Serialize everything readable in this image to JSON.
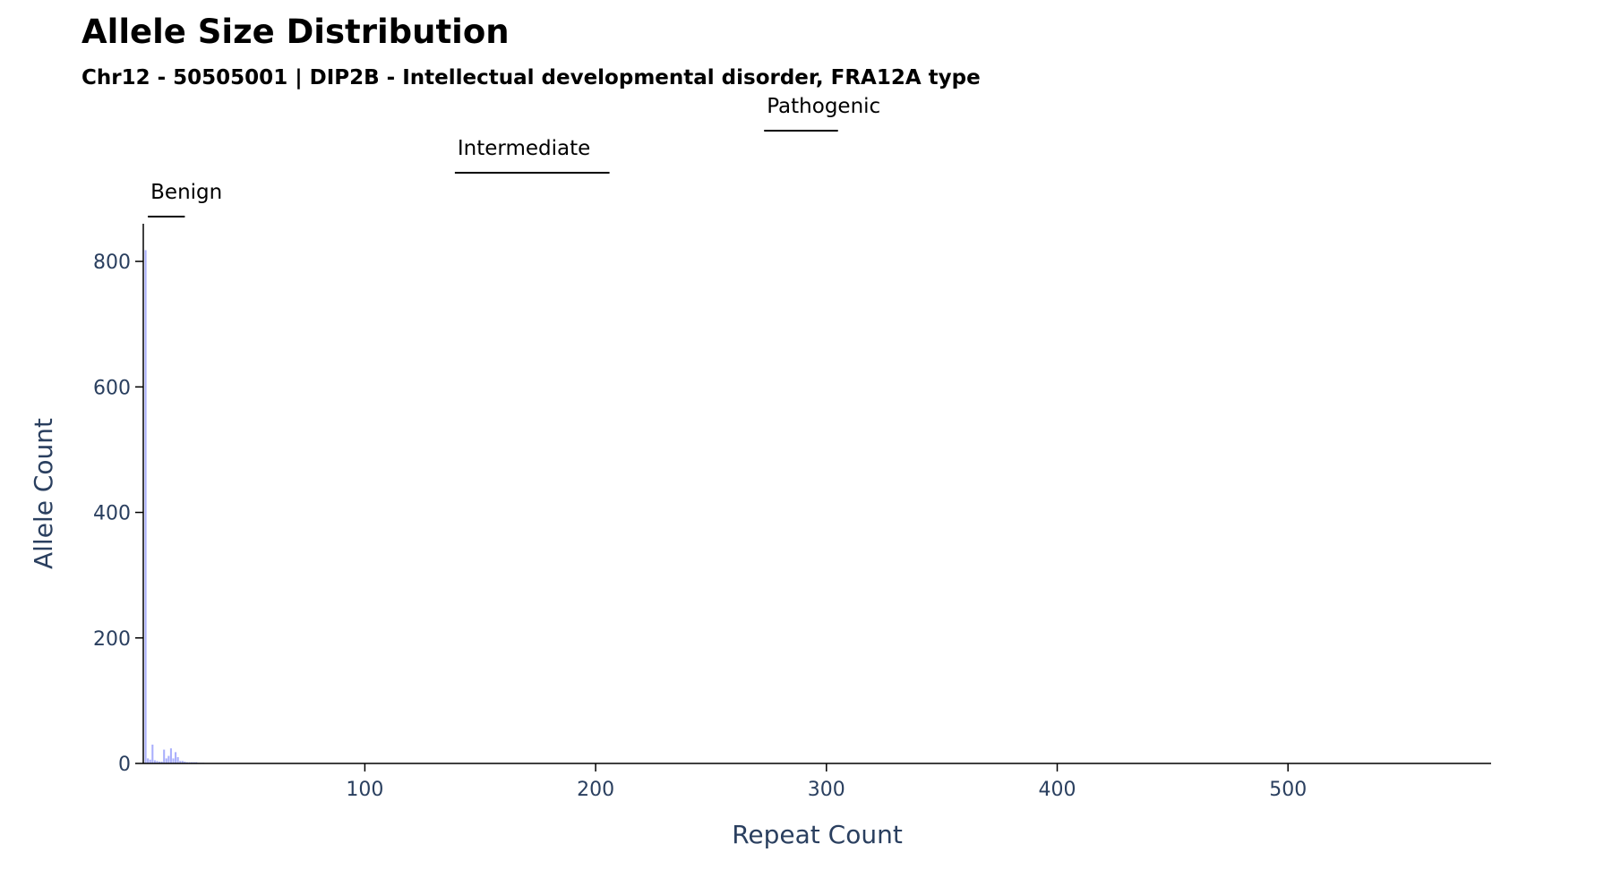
{
  "chart_data": {
    "type": "bar",
    "title": "Allele Size Distribution",
    "subtitle": "Chr12 - 50505001 | DIP2B - Intellectual developmental disorder, FRA12A type",
    "xlabel": "Repeat Count",
    "ylabel": "Allele Count",
    "xlim": [
      4,
      588
    ],
    "ylim": [
      0,
      860
    ],
    "x_ticks": [
      100,
      200,
      300,
      400,
      500
    ],
    "y_ticks": [
      0,
      200,
      400,
      600,
      800
    ],
    "bar_color": "#636efa",
    "grid": false,
    "x": [
      5,
      6,
      7,
      8,
      9,
      10,
      11,
      12,
      13,
      14,
      15,
      16,
      17,
      18,
      19,
      20,
      21,
      22,
      23,
      24,
      25,
      26,
      27,
      28,
      29,
      30
    ],
    "values": [
      818,
      8,
      6,
      30,
      5,
      4,
      3,
      3,
      22,
      8,
      12,
      24,
      8,
      18,
      10,
      4,
      4,
      3,
      2,
      2,
      2,
      2,
      2,
      1,
      1,
      1
    ],
    "ranges": [
      {
        "label": "Benign",
        "start": 6,
        "end": 22,
        "level": 1
      },
      {
        "label": "Intermediate",
        "start": 139,
        "end": 206,
        "level": 2
      },
      {
        "label": "Pathogenic",
        "start": 273,
        "end": 305,
        "level": 3
      }
    ]
  }
}
